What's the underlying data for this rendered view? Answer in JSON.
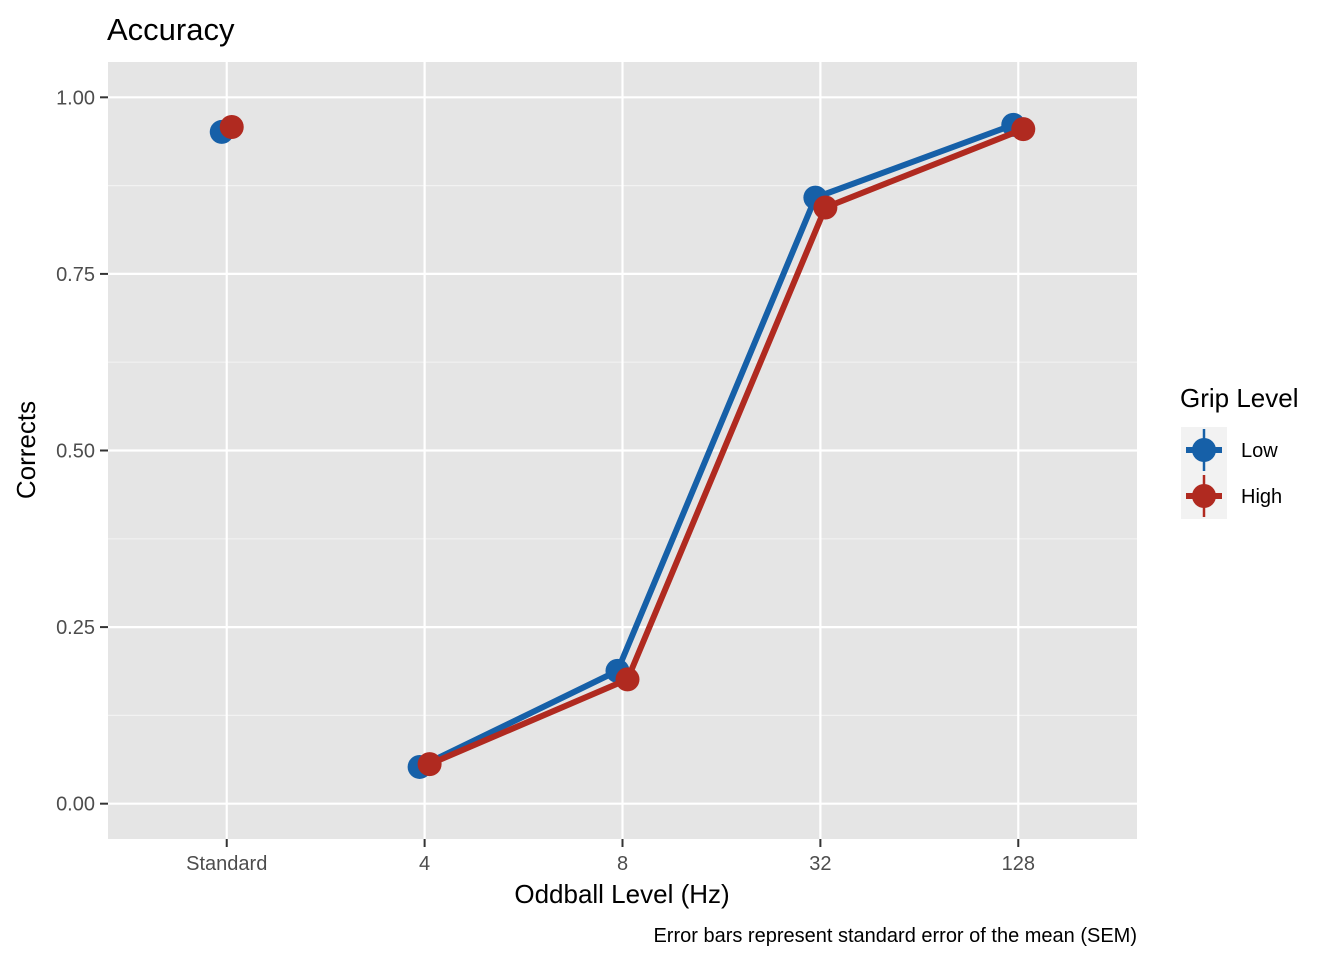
{
  "chart_data": {
    "type": "line",
    "title": "Accuracy",
    "xlabel": "Oddball Level (Hz)",
    "ylabel": "Corrects",
    "caption": "Error bars represent standard error of the mean (SEM)",
    "categories": [
      "Standard",
      "4",
      "8",
      "32",
      "128"
    ],
    "ylim": [
      -0.05,
      1.05
    ],
    "yticks": [
      0.0,
      0.25,
      0.5,
      0.75,
      1.0
    ],
    "ytick_labels": [
      "0.00",
      "0.25",
      "0.50",
      "0.75",
      "1.00"
    ],
    "grid": true,
    "legend": {
      "title": "Grip Level",
      "position": "right"
    },
    "series": [
      {
        "name": "Low",
        "color": "#1660A8",
        "values": [
          0.951,
          0.052,
          0.188,
          0.858,
          0.961
        ],
        "connected_from_index": 1
      },
      {
        "name": "High",
        "color": "#B02A20",
        "values": [
          0.958,
          0.056,
          0.176,
          0.844,
          0.955
        ],
        "connected_from_index": 1
      }
    ]
  }
}
